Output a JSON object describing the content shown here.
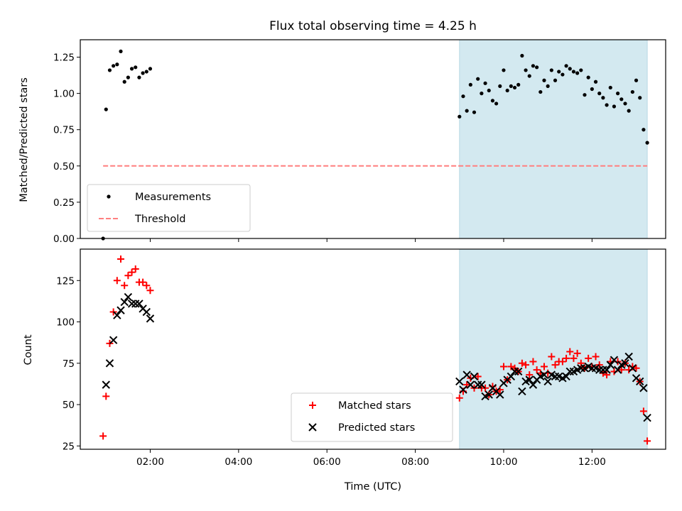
{
  "chart_data": [
    {
      "type": "scatter",
      "title": "Flux total observing time = 4.25 h",
      "xlabel": "",
      "ylabel": "Matched/Predicted stars",
      "xlim": [
        "00:25",
        "13:40"
      ],
      "ylim": [
        0,
        1.37
      ],
      "yticks": [
        "0.00",
        "0.25",
        "0.50",
        "0.75",
        "1.00",
        "1.25"
      ],
      "highlight_span": {
        "from": "09:00",
        "to": "13:15",
        "color": "#d3e9f0"
      },
      "legend_position": "lower-left",
      "series": [
        {
          "name": "Measurements",
          "marker": "dot",
          "color": "#000000",
          "points": [
            [
              "00:56",
              0.0
            ],
            [
              "01:00",
              0.89
            ],
            [
              "01:05",
              1.16
            ],
            [
              "01:10",
              1.19
            ],
            [
              "01:15",
              1.2
            ],
            [
              "01:20",
              1.29
            ],
            [
              "01:25",
              1.08
            ],
            [
              "01:30",
              1.11
            ],
            [
              "01:35",
              1.17
            ],
            [
              "01:40",
              1.18
            ],
            [
              "01:45",
              1.11
            ],
            [
              "01:50",
              1.14
            ],
            [
              "01:55",
              1.15
            ],
            [
              "02:00",
              1.17
            ],
            [
              "09:00",
              0.84
            ],
            [
              "09:05",
              0.98
            ],
            [
              "09:10",
              0.88
            ],
            [
              "09:15",
              1.06
            ],
            [
              "09:20",
              0.87
            ],
            [
              "09:25",
              1.1
            ],
            [
              "09:30",
              1.0
            ],
            [
              "09:35",
              1.07
            ],
            [
              "09:40",
              1.02
            ],
            [
              "09:45",
              0.95
            ],
            [
              "09:50",
              0.93
            ],
            [
              "09:55",
              1.05
            ],
            [
              "10:00",
              1.16
            ],
            [
              "10:05",
              1.02
            ],
            [
              "10:10",
              1.05
            ],
            [
              "10:15",
              1.04
            ],
            [
              "10:20",
              1.06
            ],
            [
              "10:25",
              1.26
            ],
            [
              "10:30",
              1.16
            ],
            [
              "10:35",
              1.12
            ],
            [
              "10:40",
              1.19
            ],
            [
              "10:45",
              1.18
            ],
            [
              "10:50",
              1.01
            ],
            [
              "10:55",
              1.09
            ],
            [
              "11:00",
              1.05
            ],
            [
              "11:05",
              1.16
            ],
            [
              "11:10",
              1.09
            ],
            [
              "11:15",
              1.15
            ],
            [
              "11:20",
              1.13
            ],
            [
              "11:25",
              1.19
            ],
            [
              "11:30",
              1.17
            ],
            [
              "11:35",
              1.15
            ],
            [
              "11:40",
              1.14
            ],
            [
              "11:45",
              1.16
            ],
            [
              "11:50",
              0.99
            ],
            [
              "11:55",
              1.11
            ],
            [
              "12:00",
              1.03
            ],
            [
              "12:05",
              1.08
            ],
            [
              "12:10",
              1.0
            ],
            [
              "12:15",
              0.97
            ],
            [
              "12:20",
              0.92
            ],
            [
              "12:25",
              1.04
            ],
            [
              "12:30",
              0.91
            ],
            [
              "12:35",
              1.0
            ],
            [
              "12:40",
              0.96
            ],
            [
              "12:45",
              0.93
            ],
            [
              "12:50",
              0.88
            ],
            [
              "12:55",
              1.01
            ],
            [
              "13:00",
              1.09
            ],
            [
              "13:05",
              0.97
            ],
            [
              "13:10",
              0.75
            ],
            [
              "13:15",
              0.66
            ]
          ]
        },
        {
          "name": "Threshold",
          "marker": "dashed-line",
          "color": "#ff7f7f",
          "x_from": "00:56",
          "x_to": "13:15",
          "y": 0.5
        }
      ]
    },
    {
      "type": "scatter",
      "xlabel": "Time (UTC)",
      "ylabel": "Count",
      "xlim": [
        "00:25",
        "13:40"
      ],
      "ylim": [
        23,
        144
      ],
      "yticks": [
        "25",
        "50",
        "75",
        "100",
        "125"
      ],
      "xticks": [
        "02:00",
        "04:00",
        "06:00",
        "08:00",
        "10:00",
        "12:00"
      ],
      "highlight_span": {
        "from": "09:00",
        "to": "13:15",
        "color": "#d3e9f0"
      },
      "legend_position": "lower-center",
      "series": [
        {
          "name": "Matched stars",
          "marker": "plus",
          "color": "#ff0000",
          "points": [
            [
              "00:56",
              31
            ],
            [
              "01:00",
              55
            ],
            [
              "01:05",
              87
            ],
            [
              "01:10",
              106
            ],
            [
              "01:15",
              125
            ],
            [
              "01:20",
              138
            ],
            [
              "01:25",
              122
            ],
            [
              "01:30",
              128
            ],
            [
              "01:35",
              130
            ],
            [
              "01:40",
              132
            ],
            [
              "01:45",
              124
            ],
            [
              "01:50",
              124
            ],
            [
              "01:55",
              122
            ],
            [
              "02:00",
              119
            ],
            [
              "09:00",
              54
            ],
            [
              "09:05",
              58
            ],
            [
              "09:10",
              62
            ],
            [
              "09:15",
              66
            ],
            [
              "09:20",
              60
            ],
            [
              "09:25",
              67
            ],
            [
              "09:30",
              60
            ],
            [
              "09:35",
              60
            ],
            [
              "09:40",
              56
            ],
            [
              "09:45",
              61
            ],
            [
              "09:50",
              58
            ],
            [
              "09:55",
              59
            ],
            [
              "10:00",
              73
            ],
            [
              "10:05",
              65
            ],
            [
              "10:10",
              73
            ],
            [
              "10:15",
              72
            ],
            [
              "10:20",
              70
            ],
            [
              "10:25",
              75
            ],
            [
              "10:30",
              74
            ],
            [
              "10:35",
              68
            ],
            [
              "10:40",
              76
            ],
            [
              "10:45",
              71
            ],
            [
              "10:50",
              69
            ],
            [
              "10:55",
              73
            ],
            [
              "11:00",
              69
            ],
            [
              "11:05",
              79
            ],
            [
              "11:10",
              74
            ],
            [
              "11:15",
              76
            ],
            [
              "11:20",
              76
            ],
            [
              "11:25",
              78
            ],
            [
              "11:30",
              82
            ],
            [
              "11:35",
              78
            ],
            [
              "11:40",
              81
            ],
            [
              "11:45",
              75
            ],
            [
              "11:50",
              72
            ],
            [
              "11:55",
              78
            ],
            [
              "12:00",
              73
            ],
            [
              "12:05",
              79
            ],
            [
              "12:10",
              74
            ],
            [
              "12:15",
              69
            ],
            [
              "12:20",
              68
            ],
            [
              "12:25",
              76
            ],
            [
              "12:30",
              70
            ],
            [
              "12:35",
              76
            ],
            [
              "12:40",
              71
            ],
            [
              "12:45",
              75
            ],
            [
              "12:50",
              71
            ],
            [
              "12:55",
              73
            ],
            [
              "13:00",
              72
            ],
            [
              "13:05",
              64
            ],
            [
              "13:10",
              46
            ],
            [
              "13:15",
              28
            ]
          ]
        },
        {
          "name": "Predicted stars",
          "marker": "x",
          "color": "#000000",
          "points": [
            [
              "01:00",
              62
            ],
            [
              "01:05",
              75
            ],
            [
              "01:10",
              89
            ],
            [
              "01:15",
              104
            ],
            [
              "01:20",
              107
            ],
            [
              "01:25",
              112
            ],
            [
              "01:30",
              115
            ],
            [
              "01:35",
              111
            ],
            [
              "01:40",
              111
            ],
            [
              "01:45",
              111
            ],
            [
              "01:50",
              108
            ],
            [
              "01:55",
              106
            ],
            [
              "02:00",
              102
            ],
            [
              "09:00",
              64
            ],
            [
              "09:05",
              59
            ],
            [
              "09:10",
              68
            ],
            [
              "09:15",
              62
            ],
            [
              "09:20",
              67
            ],
            [
              "09:25",
              62
            ],
            [
              "09:30",
              62
            ],
            [
              "09:35",
              55
            ],
            [
              "09:40",
              56
            ],
            [
              "09:45",
              60
            ],
            [
              "09:50",
              58
            ],
            [
              "09:55",
              56
            ],
            [
              "10:00",
              63
            ],
            [
              "10:05",
              65
            ],
            [
              "10:10",
              67
            ],
            [
              "10:15",
              70
            ],
            [
              "10:20",
              70
            ],
            [
              "10:25",
              58
            ],
            [
              "10:30",
              64
            ],
            [
              "10:35",
              65
            ],
            [
              "10:40",
              62
            ],
            [
              "10:45",
              65
            ],
            [
              "10:50",
              67
            ],
            [
              "10:55",
              68
            ],
            [
              "11:00",
              64
            ],
            [
              "11:05",
              68
            ],
            [
              "11:10",
              67
            ],
            [
              "11:15",
              67
            ],
            [
              "11:20",
              66
            ],
            [
              "11:25",
              67
            ],
            [
              "11:30",
              70
            ],
            [
              "11:35",
              70
            ],
            [
              "11:40",
              71
            ],
            [
              "11:45",
              72
            ],
            [
              "11:50",
              72
            ],
            [
              "11:55",
              73
            ],
            [
              "12:00",
              72
            ],
            [
              "12:05",
              72
            ],
            [
              "12:10",
              71
            ],
            [
              "12:15",
              71
            ],
            [
              "12:20",
              71
            ],
            [
              "12:25",
              74
            ],
            [
              "12:30",
              77
            ],
            [
              "12:35",
              71
            ],
            [
              "12:40",
              74
            ],
            [
              "12:45",
              75
            ],
            [
              "12:50",
              79
            ],
            [
              "12:55",
              72
            ],
            [
              "13:00",
              66
            ],
            [
              "13:05",
              64
            ],
            [
              "13:10",
              60
            ],
            [
              "13:15",
              42
            ]
          ]
        }
      ]
    }
  ]
}
